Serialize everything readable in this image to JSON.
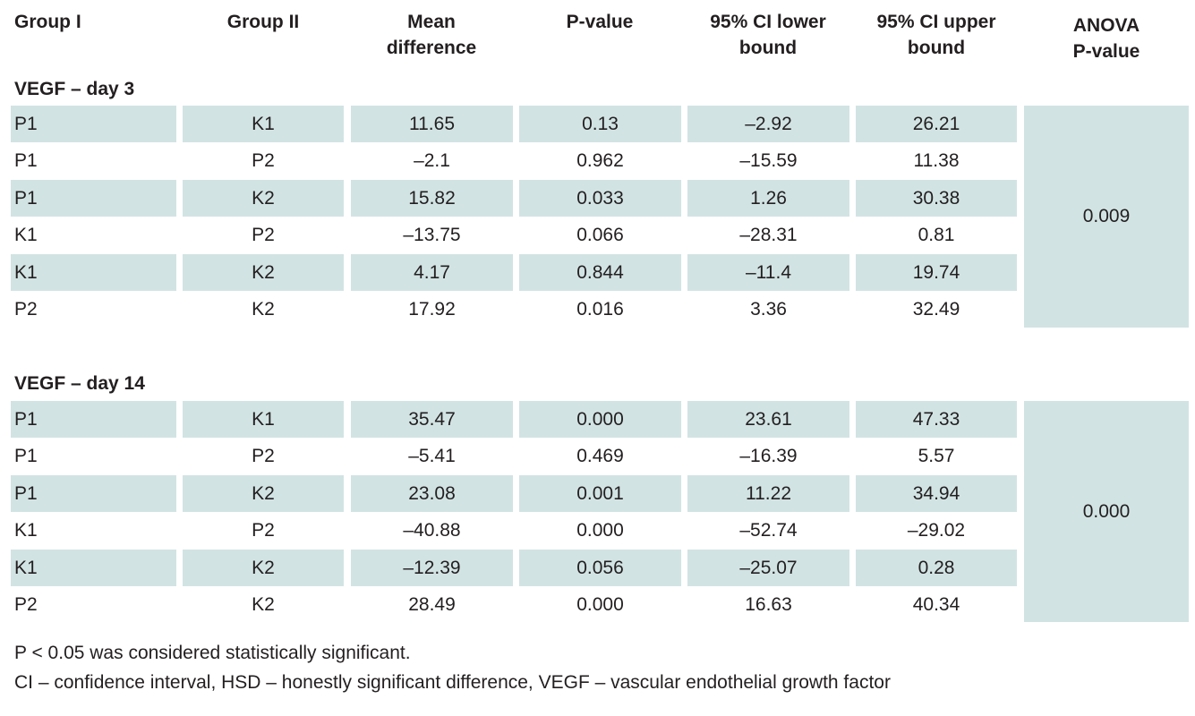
{
  "headers": {
    "group1": "Group I",
    "group2": "Group II",
    "mean_diff": "Mean\ndifference",
    "p_value": "P-value",
    "ci_lower": "95% CI lower\nbound",
    "ci_upper": "95% CI upper\nbound",
    "anova": "ANOVA\nP-value"
  },
  "sections": [
    {
      "title": "VEGF – day 3",
      "anova_p": "0.009",
      "rows": [
        {
          "g1": "P1",
          "g2": "K1",
          "mean": "11.65",
          "p": "0.13",
          "lo": "–2.92",
          "hi": "26.21"
        },
        {
          "g1": "P1",
          "g2": "P2",
          "mean": "–2.1",
          "p": "0.962",
          "lo": "–15.59",
          "hi": "11.38"
        },
        {
          "g1": "P1",
          "g2": "K2",
          "mean": "15.82",
          "p": "0.033",
          "lo": "1.26",
          "hi": "30.38"
        },
        {
          "g1": "K1",
          "g2": "P2",
          "mean": "–13.75",
          "p": "0.066",
          "lo": "–28.31",
          "hi": "0.81"
        },
        {
          "g1": "K1",
          "g2": "K2",
          "mean": "4.17",
          "p": "0.844",
          "lo": "–11.4",
          "hi": "19.74"
        },
        {
          "g1": "P2",
          "g2": "K2",
          "mean": "17.92",
          "p": "0.016",
          "lo": "3.36",
          "hi": "32.49"
        }
      ]
    },
    {
      "title": "VEGF – day 14",
      "anova_p": "0.000",
      "rows": [
        {
          "g1": "P1",
          "g2": "K1",
          "mean": "35.47",
          "p": "0.000",
          "lo": "23.61",
          "hi": "47.33"
        },
        {
          "g1": "P1",
          "g2": "P2",
          "mean": "–5.41",
          "p": "0.469",
          "lo": "–16.39",
          "hi": "5.57"
        },
        {
          "g1": "P1",
          "g2": "K2",
          "mean": "23.08",
          "p": "0.001",
          "lo": "11.22",
          "hi": "34.94"
        },
        {
          "g1": "K1",
          "g2": "P2",
          "mean": "–40.88",
          "p": "0.000",
          "lo": "–52.74",
          "hi": "–29.02"
        },
        {
          "g1": "K1",
          "g2": "K2",
          "mean": "–12.39",
          "p": "0.056",
          "lo": "–25.07",
          "hi": "0.28"
        },
        {
          "g1": "P2",
          "g2": "K2",
          "mean": "28.49",
          "p": "0.000",
          "lo": "16.63",
          "hi": "40.34"
        }
      ]
    }
  ],
  "notes": [
    "P < 0.05 was considered statistically significant.",
    "CI – confidence interval, HSD – honestly significant difference, VEGF – vascular endothelial growth factor"
  ],
  "colors": {
    "shade": "#d2e3e3",
    "text": "#231f20"
  }
}
